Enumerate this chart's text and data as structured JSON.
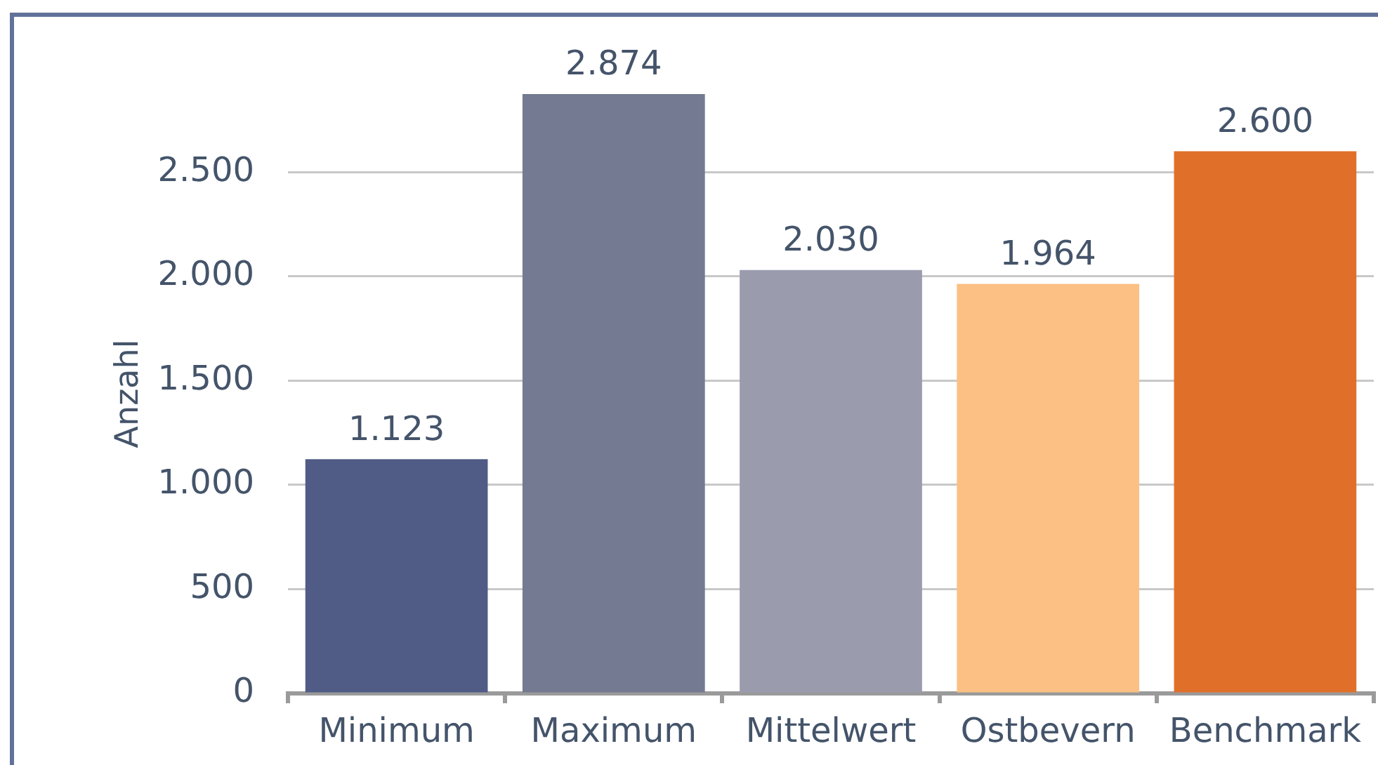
{
  "chart_data": {
    "type": "bar",
    "ylabel": "Anzahl",
    "categories": [
      "Minimum",
      "Maximum",
      "Mittelwert",
      "Ostbevern",
      "Benchmark"
    ],
    "values": [
      1123,
      2874,
      2030,
      1964,
      2600
    ],
    "colors": [
      "#505c85",
      "#737a91",
      "#9a9cae",
      "#fcc084",
      "#e07029"
    ],
    "value_labels": [
      "1.123",
      "2.874",
      "2.030",
      "1.964",
      "2.600"
    ],
    "ylim": [
      0,
      2874
    ],
    "yticks": [
      0,
      500,
      {
        "value": 1000,
        "label": "1.000"
      },
      {
        "value": 1500,
        "label": "1.500"
      },
      {
        "value": 2000,
        "label": "2.000"
      },
      {
        "value": 2500,
        "label": "2.500"
      }
    ],
    "grid": "y",
    "legend": false
  }
}
